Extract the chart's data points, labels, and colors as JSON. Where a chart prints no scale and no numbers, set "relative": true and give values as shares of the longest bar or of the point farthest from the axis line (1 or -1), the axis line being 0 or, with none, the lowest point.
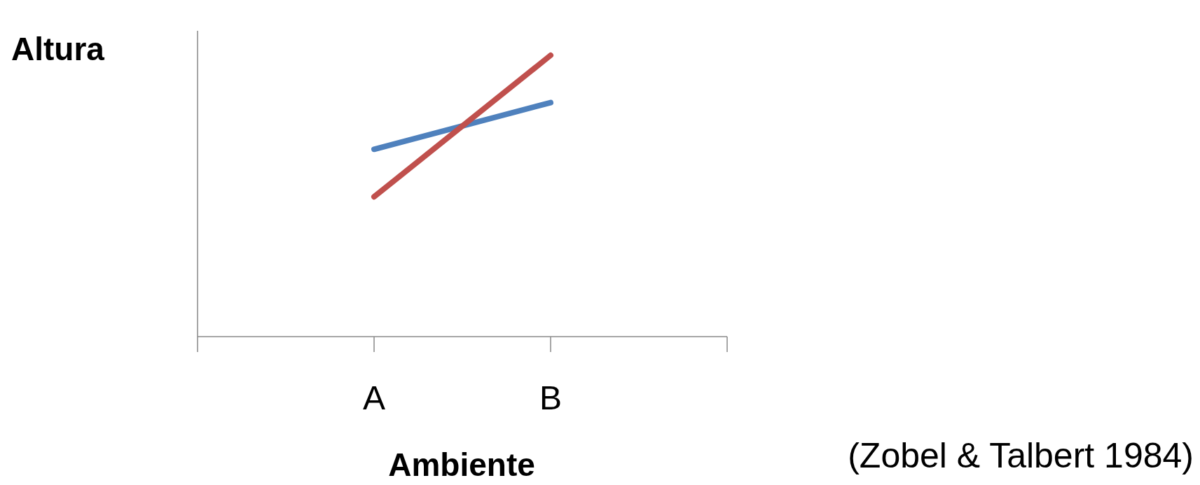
{
  "chart_data": {
    "type": "line",
    "relative": true,
    "xlabel": "Ambiente",
    "ylabel": "Altura",
    "categories": [
      null,
      "A",
      "B",
      null
    ],
    "series": [
      {
        "color": "#4f81bd",
        "values": [
          null,
          0.666,
          0.832,
          null
        ]
      },
      {
        "color": "#c0504d",
        "values": [
          null,
          0.497,
          1,
          null
        ]
      }
    ],
    "annotations": [
      "(Zobel & Talbert 1984)"
    ],
    "marker": "none",
    "line_style": "solid"
  }
}
